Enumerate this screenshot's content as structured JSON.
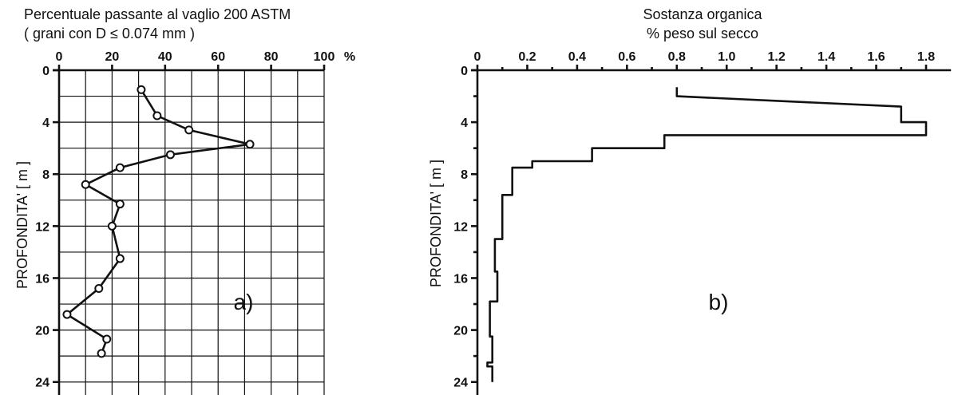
{
  "chart_data": [
    {
      "type": "line",
      "panel_label": "a)",
      "title_lines": [
        "Percentuale passante al vaglio 200 ASTM",
        "( grani  con  D ≤ 0.074 mm )"
      ],
      "xlabel": "%",
      "ylabel": "PROFONDITA' [ m ]",
      "xlim": [
        0,
        100
      ],
      "ylim": [
        0,
        25
      ],
      "y_inverted": true,
      "x_ticks": [
        0,
        20,
        40,
        60,
        80,
        100
      ],
      "y_ticks": [
        0,
        4,
        8,
        12,
        16,
        20,
        24
      ],
      "grid": true,
      "markers": "open-circle",
      "series": [
        {
          "x": [
            31,
            37,
            49,
            72,
            42,
            23,
            10,
            23,
            20,
            23,
            15,
            3,
            18,
            16
          ],
          "y": [
            1.5,
            3.5,
            4.6,
            5.7,
            6.5,
            7.5,
            8.8,
            10.3,
            12.0,
            14.5,
            16.8,
            18.8,
            20.7,
            21.8
          ]
        }
      ]
    },
    {
      "type": "line",
      "line_shape": "step",
      "panel_label": "b)",
      "title_lines": [
        "Sostanza organica",
        "% peso sul secco"
      ],
      "ylabel": "PROFONDITA' [ m ]",
      "xlim": [
        0,
        1.9
      ],
      "ylim": [
        0,
        25
      ],
      "y_inverted": true,
      "x_ticks": [
        "0",
        "0.2",
        "0.4",
        "0.6",
        "0.8",
        "1.0",
        "1.2",
        "1.4",
        "1.6",
        "1.8"
      ],
      "y_ticks": [
        0,
        4,
        8,
        12,
        16,
        20,
        24
      ],
      "grid": false,
      "series": [
        {
          "x": [
            0.8,
            0.8,
            1.7,
            1.7,
            1.8,
            1.8,
            0.75,
            0.75,
            0.46,
            0.46,
            0.22,
            0.22,
            0.14,
            0.14,
            0.1,
            0.1,
            0.07,
            0.07,
            0.08,
            0.08,
            0.05,
            0.05,
            0.06,
            0.06,
            0.04,
            0.04,
            0.06,
            0.06
          ],
          "y": [
            1.3,
            2.0,
            2.8,
            4.0,
            4.0,
            5.0,
            5.0,
            6.0,
            6.0,
            7.0,
            7.0,
            7.5,
            7.5,
            9.6,
            9.6,
            13.0,
            13.0,
            15.5,
            15.5,
            17.8,
            17.8,
            20.5,
            20.5,
            22.5,
            22.5,
            22.8,
            22.8,
            24.0
          ]
        }
      ]
    }
  ]
}
